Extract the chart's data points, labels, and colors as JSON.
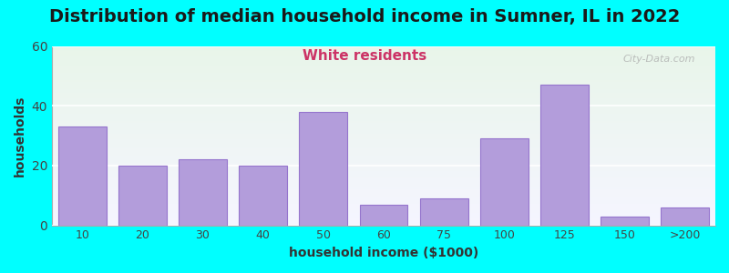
{
  "title": "Distribution of median household income in Sumner, IL in 2022",
  "subtitle": "White residents",
  "xlabel": "household income ($1000)",
  "ylabel": "households",
  "background_color": "#00FFFF",
  "plot_bg_top": "#e8f5e9",
  "plot_bg_bottom": "#f5f5ff",
  "bar_color": "#b39ddb",
  "bar_edge_color": "#9575cd",
  "categories": [
    "10",
    "20",
    "30",
    "40",
    "50",
    "60",
    "75",
    "100",
    "125",
    "150",
    ">200"
  ],
  "values": [
    33,
    20,
    22,
    20,
    38,
    7,
    9,
    29,
    47,
    3,
    6
  ],
  "ylim": [
    0,
    60
  ],
  "yticks": [
    0,
    20,
    40,
    60
  ],
  "watermark": "City-Data.com",
  "title_fontsize": 14,
  "subtitle_fontsize": 11,
  "axis_label_fontsize": 10
}
